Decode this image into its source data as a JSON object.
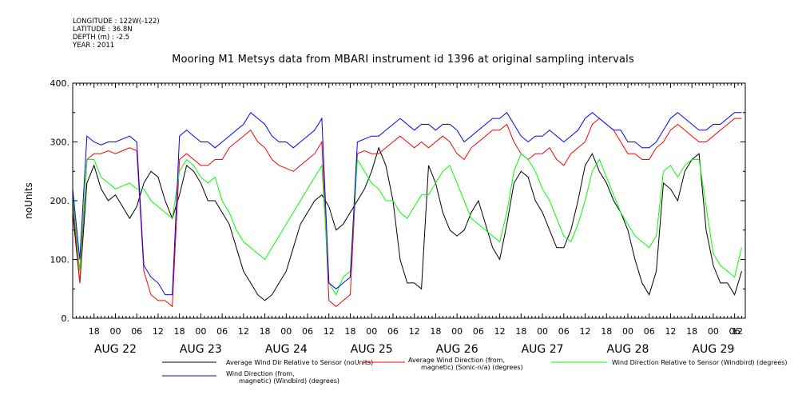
{
  "meta": {
    "longitude": "LONGITUDE : 122W(-122)",
    "latitude": "LATITUDE : 36.8N",
    "depth": "DEPTH (m) : -2.5",
    "year": "YEAR : 2011"
  },
  "chart_data": {
    "type": "line",
    "title": "Mooring M1 Metsys data from MBARI instrument id 1396 at original sampling intervals",
    "ylabel": "noUnits",
    "ylim": [
      0,
      400
    ],
    "yticks": [
      0,
      100,
      200,
      300,
      400
    ],
    "ytick_labels": [
      "0.",
      "100.",
      "200.",
      "300.",
      "400."
    ],
    "x_unit": "hours from 2011-08-21 12:00",
    "xlim": [
      0,
      189
    ],
    "hour_ticks": [
      {
        "x": 6,
        "label": "18"
      },
      {
        "x": 12,
        "label": "00"
      },
      {
        "x": 18,
        "label": "06"
      },
      {
        "x": 24,
        "label": "12"
      },
      {
        "x": 30,
        "label": "18"
      },
      {
        "x": 36,
        "label": "00"
      },
      {
        "x": 42,
        "label": "06"
      },
      {
        "x": 48,
        "label": "12"
      },
      {
        "x": 54,
        "label": "18"
      },
      {
        "x": 60,
        "label": "00"
      },
      {
        "x": 66,
        "label": "06"
      },
      {
        "x": 72,
        "label": "12"
      },
      {
        "x": 78,
        "label": "18"
      },
      {
        "x": 84,
        "label": "00"
      },
      {
        "x": 90,
        "label": "06"
      },
      {
        "x": 96,
        "label": "12"
      },
      {
        "x": 102,
        "label": "18"
      },
      {
        "x": 108,
        "label": "00"
      },
      {
        "x": 114,
        "label": "06"
      },
      {
        "x": 120,
        "label": "12"
      },
      {
        "x": 126,
        "label": "18"
      },
      {
        "x": 132,
        "label": "00"
      },
      {
        "x": 138,
        "label": "06"
      },
      {
        "x": 144,
        "label": "12"
      },
      {
        "x": 150,
        "label": "18"
      },
      {
        "x": 156,
        "label": "00"
      },
      {
        "x": 162,
        "label": "06"
      },
      {
        "x": 168,
        "label": "12"
      },
      {
        "x": 174,
        "label": "18"
      },
      {
        "x": 180,
        "label": "00"
      },
      {
        "x": 186,
        "label": "06"
      },
      {
        "x": 192,
        "label": "12"
      }
    ],
    "day_labels": [
      {
        "x": 12,
        "label": "AUG 22"
      },
      {
        "x": 36,
        "label": "AUG 23"
      },
      {
        "x": 60,
        "label": "AUG 24"
      },
      {
        "x": 84,
        "label": "AUG 25"
      },
      {
        "x": 108,
        "label": "AUG 26"
      },
      {
        "x": 132,
        "label": "AUG 27"
      },
      {
        "x": 156,
        "label": "AUG 28"
      },
      {
        "x": 180,
        "label": "AUG 29"
      }
    ],
    "series": [
      {
        "name": "Average Wind Dir Relative to Sensor (noUnits)",
        "color": "#000000",
        "x": [
          0,
          2,
          4,
          6,
          8,
          10,
          12,
          14,
          16,
          18,
          20,
          22,
          24,
          26,
          28,
          30,
          32,
          34,
          36,
          38,
          40,
          42,
          44,
          46,
          48,
          50,
          52,
          54,
          56,
          58,
          60,
          62,
          64,
          66,
          68,
          70,
          72,
          74,
          76,
          78,
          80,
          82,
          84,
          86,
          88,
          90,
          92,
          94,
          96,
          98,
          100,
          102,
          104,
          106,
          108,
          110,
          112,
          114,
          116,
          118,
          120,
          122,
          124,
          126,
          128,
          130,
          132,
          134,
          136,
          138,
          140,
          142,
          144,
          146,
          148,
          150,
          152,
          154,
          156,
          158,
          160,
          162,
          164,
          166,
          168,
          170,
          172,
          174,
          176,
          178,
          180,
          182,
          184,
          186,
          188
        ],
        "y": [
          180,
          60,
          230,
          260,
          220,
          200,
          210,
          190,
          170,
          190,
          230,
          250,
          240,
          200,
          170,
          210,
          260,
          250,
          230,
          200,
          200,
          180,
          160,
          120,
          80,
          60,
          40,
          30,
          40,
          60,
          80,
          120,
          160,
          180,
          200,
          210,
          190,
          150,
          160,
          180,
          200,
          220,
          250,
          290,
          260,
          200,
          100,
          60,
          60,
          50,
          260,
          230,
          180,
          150,
          140,
          150,
          180,
          200,
          160,
          120,
          100,
          160,
          230,
          250,
          240,
          200,
          180,
          150,
          120,
          120,
          150,
          200,
          260,
          280,
          250,
          230,
          200,
          180,
          150,
          100,
          60,
          40,
          80,
          230,
          220,
          200,
          250,
          270,
          280,
          150,
          90,
          60,
          60,
          40,
          80
        ]
      },
      {
        "name": "Average Wind Direction (from, magnetic) (Sonic-n/a) (degrees)",
        "color": "#ff0000",
        "x": [
          0,
          2,
          4,
          6,
          8,
          10,
          12,
          14,
          16,
          18,
          20,
          22,
          24,
          26,
          28,
          30,
          32,
          34,
          36,
          38,
          40,
          42,
          44,
          46,
          48,
          50,
          52,
          54,
          56,
          58,
          60,
          62,
          64,
          66,
          68,
          70,
          72,
          74,
          76,
          78,
          80,
          82,
          84,
          86,
          88,
          90,
          92,
          94,
          96,
          98,
          100,
          102,
          104,
          106,
          108,
          110,
          112,
          114,
          116,
          118,
          120,
          122,
          124,
          126,
          128,
          130,
          132,
          134,
          136,
          138,
          140,
          142,
          144,
          146,
          148,
          150,
          152,
          154,
          156,
          158,
          160,
          162,
          164,
          166,
          168,
          170,
          172,
          174,
          176,
          178,
          180,
          182,
          184,
          186,
          188
        ],
        "y": [
          200,
          60,
          270,
          280,
          280,
          285,
          280,
          285,
          290,
          285,
          80,
          40,
          30,
          30,
          20,
          270,
          280,
          270,
          260,
          260,
          270,
          270,
          290,
          300,
          310,
          320,
          300,
          290,
          270,
          260,
          255,
          250,
          260,
          270,
          280,
          300,
          30,
          20,
          30,
          40,
          280,
          285,
          280,
          280,
          290,
          300,
          310,
          300,
          290,
          300,
          290,
          300,
          310,
          300,
          280,
          270,
          290,
          300,
          310,
          320,
          320,
          330,
          300,
          280,
          270,
          280,
          280,
          290,
          270,
          260,
          280,
          290,
          300,
          330,
          340,
          330,
          320,
          300,
          280,
          280,
          270,
          270,
          290,
          300,
          320,
          330,
          320,
          310,
          300,
          300,
          310,
          320,
          330,
          340,
          340
        ]
      },
      {
        "name": "Wind Direction Relative to Sensor (Windbird) (degrees)",
        "color": "#00ff00",
        "x": [
          0,
          2,
          4,
          6,
          8,
          10,
          12,
          14,
          16,
          18,
          20,
          22,
          24,
          26,
          28,
          30,
          32,
          34,
          36,
          38,
          40,
          42,
          44,
          46,
          48,
          50,
          52,
          54,
          56,
          58,
          60,
          62,
          64,
          66,
          68,
          70,
          72,
          74,
          76,
          78,
          80,
          82,
          84,
          86,
          88,
          90,
          92,
          94,
          96,
          98,
          100,
          102,
          104,
          106,
          108,
          110,
          112,
          114,
          116,
          118,
          120,
          122,
          124,
          126,
          128,
          130,
          132,
          134,
          136,
          138,
          140,
          142,
          144,
          146,
          148,
          150,
          152,
          154,
          156,
          158,
          160,
          162,
          164,
          166,
          168,
          170,
          172,
          174,
          176,
          178,
          180,
          182,
          184,
          186,
          188
        ],
        "y": [
          210,
          80,
          270,
          270,
          240,
          230,
          220,
          225,
          230,
          220,
          220,
          200,
          190,
          180,
          170,
          250,
          270,
          260,
          240,
          230,
          240,
          200,
          180,
          150,
          130,
          120,
          110,
          100,
          120,
          140,
          160,
          180,
          200,
          220,
          240,
          260,
          60,
          40,
          70,
          80,
          270,
          250,
          230,
          220,
          200,
          200,
          180,
          170,
          190,
          210,
          210,
          230,
          250,
          260,
          230,
          200,
          170,
          160,
          150,
          140,
          130,
          180,
          250,
          280,
          270,
          250,
          220,
          200,
          170,
          140,
          130,
          160,
          200,
          250,
          270,
          240,
          210,
          180,
          160,
          140,
          130,
          120,
          140,
          250,
          260,
          240,
          260,
          270,
          270,
          190,
          110,
          90,
          80,
          70,
          120
        ]
      },
      {
        "name": "Wind Direction (from, magnetic) (Windbird) (degrees)",
        "color": "#0000ff",
        "x": [
          0,
          2,
          4,
          6,
          8,
          10,
          12,
          14,
          16,
          18,
          20,
          22,
          24,
          26,
          28,
          30,
          32,
          34,
          36,
          38,
          40,
          42,
          44,
          46,
          48,
          50,
          52,
          54,
          56,
          58,
          60,
          62,
          64,
          66,
          68,
          70,
          72,
          74,
          76,
          78,
          80,
          82,
          84,
          86,
          88,
          90,
          92,
          94,
          96,
          98,
          100,
          102,
          104,
          106,
          108,
          110,
          112,
          114,
          116,
          118,
          120,
          122,
          124,
          126,
          128,
          130,
          132,
          134,
          136,
          138,
          140,
          142,
          144,
          146,
          148,
          150,
          152,
          154,
          156,
          158,
          160,
          162,
          164,
          166,
          168,
          170,
          172,
          174,
          176,
          178,
          180,
          182,
          184,
          186,
          188
        ],
        "y": [
          220,
          100,
          310,
          300,
          295,
          300,
          300,
          305,
          310,
          300,
          90,
          70,
          60,
          40,
          40,
          310,
          320,
          310,
          300,
          300,
          290,
          300,
          310,
          320,
          330,
          350,
          340,
          330,
          310,
          300,
          300,
          290,
          300,
          310,
          320,
          340,
          60,
          50,
          60,
          70,
          300,
          305,
          310,
          310,
          320,
          330,
          340,
          330,
          320,
          330,
          330,
          320,
          330,
          330,
          320,
          300,
          310,
          320,
          330,
          340,
          340,
          350,
          330,
          310,
          300,
          310,
          310,
          320,
          310,
          300,
          310,
          320,
          340,
          350,
          340,
          330,
          320,
          320,
          300,
          300,
          290,
          290,
          300,
          320,
          340,
          350,
          340,
          330,
          320,
          320,
          330,
          330,
          340,
          350,
          350
        ]
      }
    ],
    "legend_placement": "bottom",
    "grid": false
  }
}
